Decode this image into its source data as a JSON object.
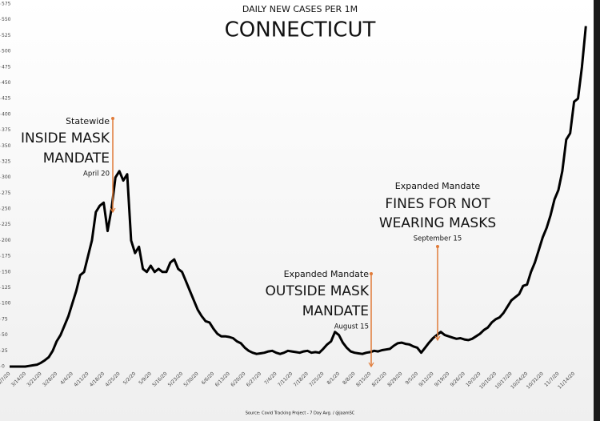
{
  "chart_data": {
    "type": "line",
    "title": "DAILY NEW CASES PER 1M",
    "subtitle": "CONNECTICUT",
    "source": "Source: Covid Tracking Project - 7 Day Avg. / @jaamSC",
    "color": "#000000",
    "annotation_color": "#e07b39",
    "ylim": [
      0,
      575
    ],
    "yticks": [
      0,
      25,
      50,
      75,
      100,
      125,
      150,
      175,
      200,
      225,
      250,
      275,
      300,
      325,
      350,
      375,
      400,
      425,
      450,
      475,
      500,
      525,
      550,
      575
    ],
    "categories": [
      "3/7/20",
      null,
      null,
      null,
      "3/14/20",
      null,
      null,
      null,
      "3/21/20",
      null,
      null,
      null,
      "3/28/20",
      null,
      null,
      null,
      "4/4/20",
      null,
      null,
      null,
      "4/11/20",
      null,
      null,
      null,
      "4/18/20",
      null,
      null,
      null,
      "4/25/20",
      null,
      null,
      null,
      "5/2/20",
      null,
      null,
      null,
      "5/9/20",
      null,
      null,
      null,
      "5/16/20",
      null,
      null,
      null,
      "5/23/20",
      null,
      null,
      null,
      "5/30/20",
      null,
      null,
      null,
      "6/6/20",
      null,
      null,
      null,
      "6/13/20",
      null,
      null,
      null,
      "6/20/20",
      null,
      null,
      null,
      "6/27/20",
      null,
      null,
      null,
      "7/4/20",
      null,
      null,
      null,
      "7/11/20",
      null,
      null,
      null,
      "7/18/20",
      null,
      null,
      null,
      "7/25/20",
      null,
      null,
      null,
      "8/1/20",
      null,
      null,
      null,
      "8/8/20",
      null,
      null,
      null,
      "8/15/20",
      null,
      null,
      null,
      "8/22/20",
      null,
      null,
      null,
      "8/29/20",
      null,
      null,
      null,
      "9/5/20",
      null,
      null,
      null,
      "9/12/20",
      null,
      null,
      null,
      "9/19/20",
      null,
      null,
      null,
      "9/26/20",
      null,
      null,
      null,
      "10/3/20",
      null,
      null,
      null,
      "10/10/20",
      null,
      null,
      null,
      "10/17/20",
      null,
      null,
      null,
      "10/24/20",
      null,
      null,
      null,
      "10/31/20",
      null,
      null,
      null,
      "11/7/20",
      null,
      null,
      null,
      "11/14/20",
      null,
      null,
      null
    ],
    "values": [
      0,
      0,
      0,
      0,
      0,
      1,
      2,
      3,
      6,
      10,
      15,
      25,
      40,
      50,
      65,
      80,
      100,
      120,
      145,
      150,
      175,
      200,
      245,
      255,
      260,
      215,
      250,
      300,
      310,
      295,
      305,
      200,
      180,
      190,
      155,
      150,
      160,
      150,
      155,
      150,
      150,
      165,
      170,
      155,
      150,
      135,
      120,
      105,
      90,
      80,
      72,
      70,
      60,
      52,
      48,
      48,
      47,
      45,
      40,
      37,
      30,
      25,
      22,
      20,
      21,
      22,
      24,
      25,
      22,
      20,
      22,
      25,
      24,
      23,
      22,
      24,
      25,
      22,
      23,
      22,
      28,
      35,
      40,
      55,
      50,
      38,
      30,
      24,
      22,
      21,
      20,
      22,
      23,
      25,
      24,
      26,
      27,
      28,
      33,
      37,
      38,
      36,
      35,
      32,
      30,
      22,
      30,
      38,
      45,
      50,
      55,
      50,
      48,
      46,
      44,
      45,
      43,
      42,
      44,
      48,
      52,
      58,
      62,
      70,
      75,
      78,
      85,
      95,
      105,
      110,
      115,
      128,
      130,
      150,
      165,
      185,
      205,
      220,
      240,
      265,
      280,
      310,
      360,
      370,
      420,
      425,
      475,
      540
    ],
    "annotations": [
      {
        "small": "Statewide",
        "big": [
          "INSIDE MASK",
          "MANDATE"
        ],
        "date": "April 20"
      },
      {
        "small": "Expanded Mandate",
        "big": [
          "OUTSIDE MASK",
          "MANDATE"
        ],
        "date": "August 15"
      },
      {
        "small": "Expanded Mandate",
        "big": [
          "FINES FOR NOT",
          "WEARING MASKS"
        ],
        "date": "September 15"
      }
    ]
  }
}
